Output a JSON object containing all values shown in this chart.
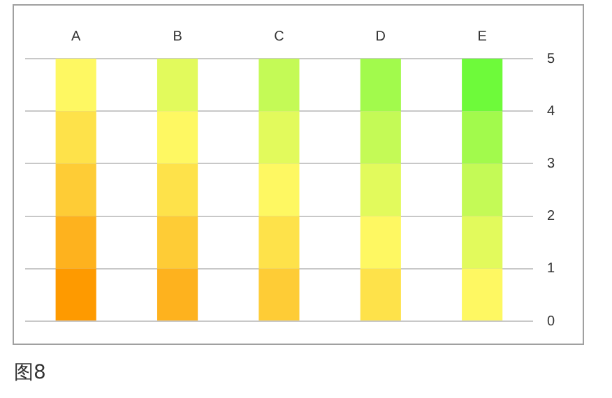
{
  "chart_data": {
    "type": "bar",
    "stacked": true,
    "categories": [
      "A",
      "B",
      "C",
      "D",
      "E"
    ],
    "series": [
      {
        "colors": [
          "#fe9a00",
          "#feb21e",
          "#fecc36",
          "#fee24a",
          "#fef862"
        ],
        "values": [
          1,
          1,
          1,
          1,
          1
        ]
      },
      {
        "colors": [
          "#feb21e",
          "#fecc36",
          "#fee24a",
          "#fef862",
          "#e2fa5c"
        ],
        "values": [
          1,
          1,
          1,
          1,
          1
        ]
      },
      {
        "colors": [
          "#fecc36",
          "#fee24a",
          "#fef862",
          "#e2fa5c",
          "#c4fa56"
        ],
        "values": [
          1,
          1,
          1,
          1,
          1
        ]
      },
      {
        "colors": [
          "#fee24a",
          "#fef862",
          "#e2fa5c",
          "#c4fa56",
          "#a2fa4c"
        ],
        "values": [
          1,
          1,
          1,
          1,
          1
        ]
      },
      {
        "colors": [
          "#fef862",
          "#e2fa5c",
          "#c4fa56",
          "#a2fa4c",
          "#6efa3a"
        ],
        "values": [
          1,
          1,
          1,
          1,
          1
        ]
      }
    ],
    "ylim": [
      0,
      5
    ],
    "yticks": [
      0,
      1,
      2,
      3,
      4,
      5
    ],
    "grid": "y",
    "legend": false,
    "annotations": [
      "图8"
    ]
  }
}
